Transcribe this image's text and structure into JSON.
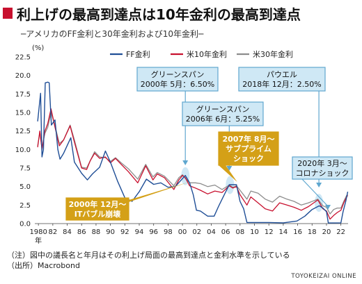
{
  "header": {
    "title": "利上げの最高到達点は10年金利の最高到達点",
    "subtitle": "─アメリカのFF金利と30年金利および10年金利─"
  },
  "footer": {
    "note": "（注）図中の議長名と年月はその利上げ局面の最高到達点と金利水準を示している",
    "source": "（出所）Macrobond",
    "brand": "TOYOKEIZAI ONLINE"
  },
  "colors": {
    "ff": "#1f4e96",
    "t10": "#c8102e",
    "t30": "#8c8c8c",
    "blue_callout": "#cfe8f5",
    "blue_callout_border": "#5fa7cf",
    "gold_callout": "#d4a017",
    "accent": "#c8102e"
  },
  "chart_data": {
    "type": "line",
    "title": "利上げの最高到達点は10年金利の最高到達点",
    "subtitle": "─アメリカのFF金利と30年金利および10年金利─",
    "y_unit": "(%)",
    "ylim": [
      0,
      22.5
    ],
    "yticks": [
      "0.0",
      "2.5",
      "5.0",
      "7.5",
      "10.0",
      "12.5",
      "15.0",
      "17.5",
      "20.0",
      "22.5"
    ],
    "yticks_values": [
      0,
      2.5,
      5,
      7.5,
      10,
      12.5,
      15,
      17.5,
      20,
      22.5
    ],
    "xlim": [
      1979.5,
      2023
    ],
    "xticks": [
      "1980",
      "82",
      "84",
      "86",
      "88",
      "90",
      "92",
      "94",
      "96",
      "98",
      "00",
      "02",
      "04",
      "06",
      "08",
      "10",
      "12",
      "14",
      "16",
      "18",
      "20",
      "22"
    ],
    "xticks_values": [
      1980,
      1982,
      1984,
      1986,
      1988,
      1990,
      1992,
      1994,
      1996,
      1998,
      2000,
      2002,
      2004,
      2006,
      2008,
      2010,
      2012,
      2014,
      2016,
      2018,
      2020,
      2022
    ],
    "x_unit": "年",
    "legend": [
      "FF金利",
      "米10年金利",
      "米30年金利"
    ],
    "legend_position": "top",
    "grid": false,
    "series": [
      {
        "name": "FF金利",
        "x": [
          1979.9,
          1980.3,
          1980.5,
          1980.7,
          1980.95,
          1981.3,
          1981.5,
          1981.8,
          1982.3,
          1982.7,
          1983.0,
          1983.5,
          1984.5,
          1985.0,
          1986.0,
          1986.8,
          1987.5,
          1988.5,
          1989.3,
          1990.0,
          1991.0,
          1992.0,
          1993.0,
          1994.0,
          1995.0,
          1996.0,
          1997.0,
          1998.0,
          1999.0,
          2000.4,
          2001.0,
          2001.5,
          2001.95,
          2002.5,
          2003.5,
          2004.4,
          2005.0,
          2005.5,
          2006.5,
          2007.5,
          2008.0,
          2008.5,
          2008.95,
          2010.0,
          2012.0,
          2014.0,
          2015.9,
          2017.0,
          2018.0,
          2019.0,
          2019.5,
          2020.0,
          2020.25,
          2021.0,
          2022.0,
          2022.3,
          2022.7,
          2022.95
        ],
        "y": [
          13.8,
          17.6,
          9.0,
          10.0,
          19.0,
          19.1,
          19.0,
          13.3,
          14.0,
          10.0,
          8.7,
          9.5,
          11.6,
          8.3,
          6.8,
          5.9,
          6.7,
          7.6,
          9.8,
          8.3,
          5.7,
          3.5,
          3.0,
          4.3,
          6.0,
          5.3,
          5.5,
          4.9,
          5.0,
          6.5,
          5.5,
          3.9,
          1.8,
          1.7,
          1.0,
          1.0,
          2.3,
          3.3,
          5.25,
          5.25,
          3.0,
          2.0,
          0.15,
          0.15,
          0.15,
          0.1,
          0.35,
          1.0,
          1.9,
          2.4,
          2.1,
          1.6,
          0.08,
          0.08,
          0.1,
          1.6,
          3.1,
          4.3
        ]
      },
      {
        "name": "米10年金利",
        "x": [
          1979.9,
          1980.2,
          1980.5,
          1980.9,
          1981.3,
          1981.75,
          1982.3,
          1982.9,
          1983.5,
          1984.4,
          1985.0,
          1986.0,
          1986.7,
          1987.2,
          1987.8,
          1988.5,
          1989.3,
          1990.0,
          1990.7,
          1991.5,
          1992.5,
          1993.8,
          1994.9,
          1995.9,
          1996.5,
          1997.5,
          1998.8,
          1999.5,
          2000.0,
          2000.4,
          2001.0,
          2001.8,
          2002.5,
          2003.5,
          2004.5,
          2005.5,
          2006.5,
          2007.0,
          2007.5,
          2008.0,
          2008.95,
          2009.5,
          2010.5,
          2011.5,
          2012.5,
          2013.5,
          2014.5,
          2015.5,
          2016.5,
          2017.5,
          2018.8,
          2019.5,
          2020.0,
          2020.5,
          2021.0,
          2021.5,
          2022.0,
          2022.4,
          2022.8,
          2022.95
        ],
        "y": [
          10.3,
          12.5,
          10.0,
          12.5,
          13.5,
          15.5,
          13.0,
          10.5,
          11.3,
          13.2,
          11.0,
          7.5,
          7.3,
          8.5,
          9.5,
          8.8,
          9.0,
          8.2,
          8.8,
          8.0,
          7.0,
          5.5,
          7.8,
          5.9,
          6.7,
          6.2,
          4.6,
          5.9,
          6.5,
          6.2,
          5.1,
          4.8,
          4.5,
          4.0,
          4.4,
          4.2,
          5.1,
          4.8,
          5.0,
          3.9,
          2.5,
          3.6,
          2.8,
          2.0,
          1.7,
          2.8,
          2.5,
          2.2,
          1.8,
          2.3,
          3.2,
          2.0,
          1.7,
          0.6,
          1.1,
          1.5,
          1.8,
          2.8,
          3.6,
          3.8
        ]
      },
      {
        "name": "米30年金利",
        "x": [
          1979.9,
          1980.2,
          1980.5,
          1980.9,
          1981.3,
          1981.75,
          1982.3,
          1982.9,
          1983.5,
          1984.4,
          1985.0,
          1986.0,
          1986.7,
          1987.8,
          1988.5,
          1989.3,
          1990.0,
          1990.7,
          1991.5,
          1992.5,
          1993.8,
          1994.9,
          1995.9,
          1996.5,
          1997.5,
          1998.8,
          1999.5,
          2000.0,
          2000.4,
          2001.0,
          2001.8,
          2002.5,
          2003.5,
          2004.5,
          2005.5,
          2006.5,
          2007.0,
          2007.5,
          2008.0,
          2008.95,
          2009.5,
          2010.5,
          2011.5,
          2012.5,
          2013.5,
          2014.5,
          2015.5,
          2016.5,
          2017.5,
          2018.8,
          2019.5,
          2020.0,
          2020.5,
          2021.0,
          2021.5,
          2022.0,
          2022.4,
          2022.8,
          2022.95
        ],
        "y": [
          10.5,
          12.3,
          10.2,
          12.2,
          13.0,
          15.0,
          13.2,
          10.8,
          11.3,
          13.3,
          11.3,
          7.6,
          7.5,
          9.7,
          9.0,
          8.9,
          8.4,
          8.9,
          8.2,
          7.4,
          6.0,
          8.0,
          6.3,
          6.9,
          6.4,
          5.1,
          6.2,
          6.6,
          6.1,
          5.5,
          5.5,
          5.4,
          5.0,
          5.2,
          4.6,
          5.2,
          4.9,
          5.1,
          4.5,
          3.3,
          4.4,
          4.1,
          3.3,
          2.9,
          3.7,
          3.3,
          3.0,
          2.5,
          2.8,
          3.3,
          2.4,
          2.2,
          1.3,
          1.9,
          2.1,
          2.1,
          3.0,
          3.8,
          3.9
        ]
      }
    ],
    "annotations": [
      {
        "id": "greenspan-2000",
        "lines": [
          "グリーンスパン",
          "2000年 5月：6.50%"
        ],
        "style": "blue",
        "x": 2000.4,
        "y": 6.5
      },
      {
        "id": "greenspan-2006",
        "lines": [
          "グリーンスパン",
          "2006年 6月：5.25%"
        ],
        "style": "blue",
        "x": 2006.5,
        "y": 5.25
      },
      {
        "id": "powell-2018",
        "lines": [
          "パウエル",
          "2018年 12月：2.50%"
        ],
        "style": "blue",
        "x": 2018.95,
        "y": 2.5
      },
      {
        "id": "subprime-2007",
        "lines": [
          "2007年 8月～",
          "サブプライム",
          "ショック"
        ],
        "style": "gold",
        "x": 2007.6,
        "y": 5.0
      },
      {
        "id": "corona-2020",
        "lines": [
          "2020年 3月～",
          "コロナショック"
        ],
        "style": "blue",
        "x": 2020.2,
        "y": 1.0
      },
      {
        "id": "it-bubble-2000",
        "lines": [
          "2000年 12月～",
          "ITバブル崩壊"
        ],
        "style": "gold",
        "x": 2000.95,
        "y": 6.0
      }
    ]
  }
}
